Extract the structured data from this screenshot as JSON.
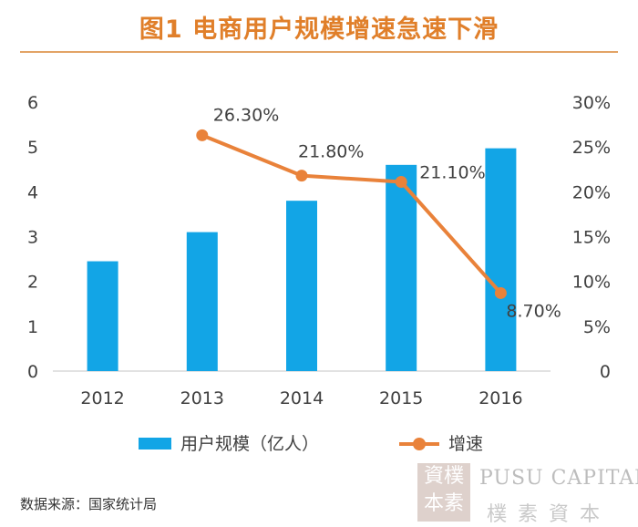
{
  "title": "图1  电商用户规模增速急速下滑",
  "source": "数据来源：国家统计局",
  "watermark": {
    "seal_text": "資樸本素",
    "english": "PUSU CAPITAL",
    "chinese": "樸 素 資 本"
  },
  "colors": {
    "bar": "#12a5e6",
    "line": "#e9823a",
    "title": "#e07f2a",
    "axis": "#d9d9d9",
    "text": "#404040"
  },
  "chart_data": {
    "type": "bar",
    "categories": [
      "2012",
      "2013",
      "2014",
      "2015",
      "2016"
    ],
    "series": [
      {
        "name": "用户规模（亿人）",
        "type": "bar",
        "axis": "left",
        "values": [
          2.45,
          3.1,
          3.8,
          4.6,
          4.97
        ]
      },
      {
        "name": "增速",
        "type": "line",
        "axis": "right",
        "x": [
          "2013",
          "2014",
          "2015",
          "2016"
        ],
        "values": [
          26.3,
          21.8,
          21.1,
          8.7
        ],
        "labels": [
          "26.30%",
          "21.80%",
          "21.10%",
          "8.70%"
        ]
      }
    ],
    "y_left": {
      "range": [
        0,
        6
      ],
      "ticks": [
        "0",
        "1",
        "2",
        "3",
        "4",
        "5",
        "6"
      ]
    },
    "y_right": {
      "range": [
        0,
        30
      ],
      "ticks": [
        "0",
        "5%",
        "10%",
        "15%",
        "20%",
        "25%",
        "30%"
      ]
    },
    "grid": false,
    "legend": "bottom"
  }
}
